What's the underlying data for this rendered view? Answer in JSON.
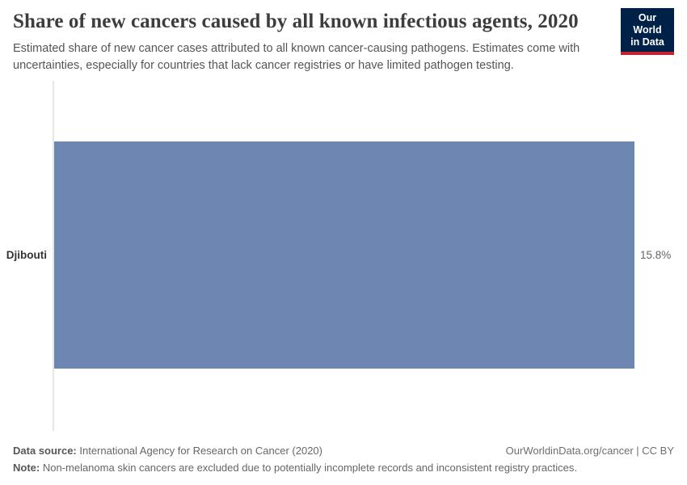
{
  "header": {
    "title": "Share of new cancers caused by all known infectious agents, 2020",
    "subtitle": "Estimated share of new cancer cases attributed to all known cancer-causing pathogens. Estimates come with uncertainties, especially for countries that lack cancer registries or have limited pathogen testing.",
    "logo": {
      "line1": "Our World",
      "line2": "in Data",
      "bg_color": "#002147",
      "accent_color": "#c5232d"
    }
  },
  "chart_data": {
    "type": "bar",
    "orientation": "horizontal",
    "categories": [
      "Djibouti"
    ],
    "values": [
      15.8
    ],
    "value_labels": [
      "15.8%"
    ],
    "title": "Share of new cancers caused by all known infectious agents, 2020",
    "xlabel": "",
    "ylabel": "",
    "xlim": [
      0,
      15.8
    ],
    "grid": false,
    "legend": false,
    "bar_color": "#6e87b2",
    "axis_line_color": "#e7e7e7"
  },
  "footer": {
    "data_source_label": "Data source:",
    "data_source_value": " International Agency for Research on Cancer (2020)",
    "link_text": "OurWorldinData.org/cancer | CC BY",
    "note_label": "Note:",
    "note_value": " Non-melanoma skin cancers are excluded due to potentially incomplete records and inconsistent registry practices."
  }
}
